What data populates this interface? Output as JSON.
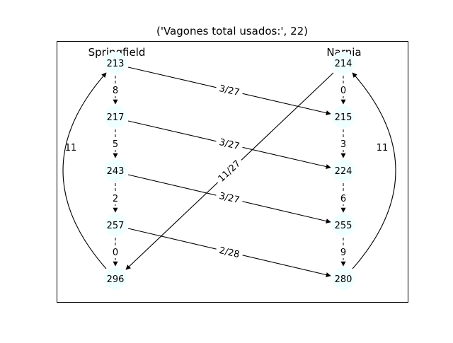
{
  "title": "('Vagones total usados:', 22)",
  "stations": {
    "left": "Springfield",
    "right": "Narnia"
  },
  "nodes": {
    "s1": "213",
    "s2": "217",
    "s3": "243",
    "s4": "257",
    "s5": "296",
    "n1": "214",
    "n2": "215",
    "n3": "224",
    "n4": "255",
    "n5": "280"
  },
  "edges": {
    "s1_s2": "8",
    "s2_s3": "5",
    "s3_s4": "2",
    "s4_s5": "0",
    "n1_n2": "0",
    "n2_n3": "3",
    "n3_n4": "6",
    "n4_n5": "9",
    "s1_n2": "3/27",
    "s2_n3": "3/27",
    "s3_n4": "3/27",
    "s4_n5": "2/28",
    "n1_s5": "11/27",
    "s5_s1": "11",
    "n5_n1": "11"
  }
}
